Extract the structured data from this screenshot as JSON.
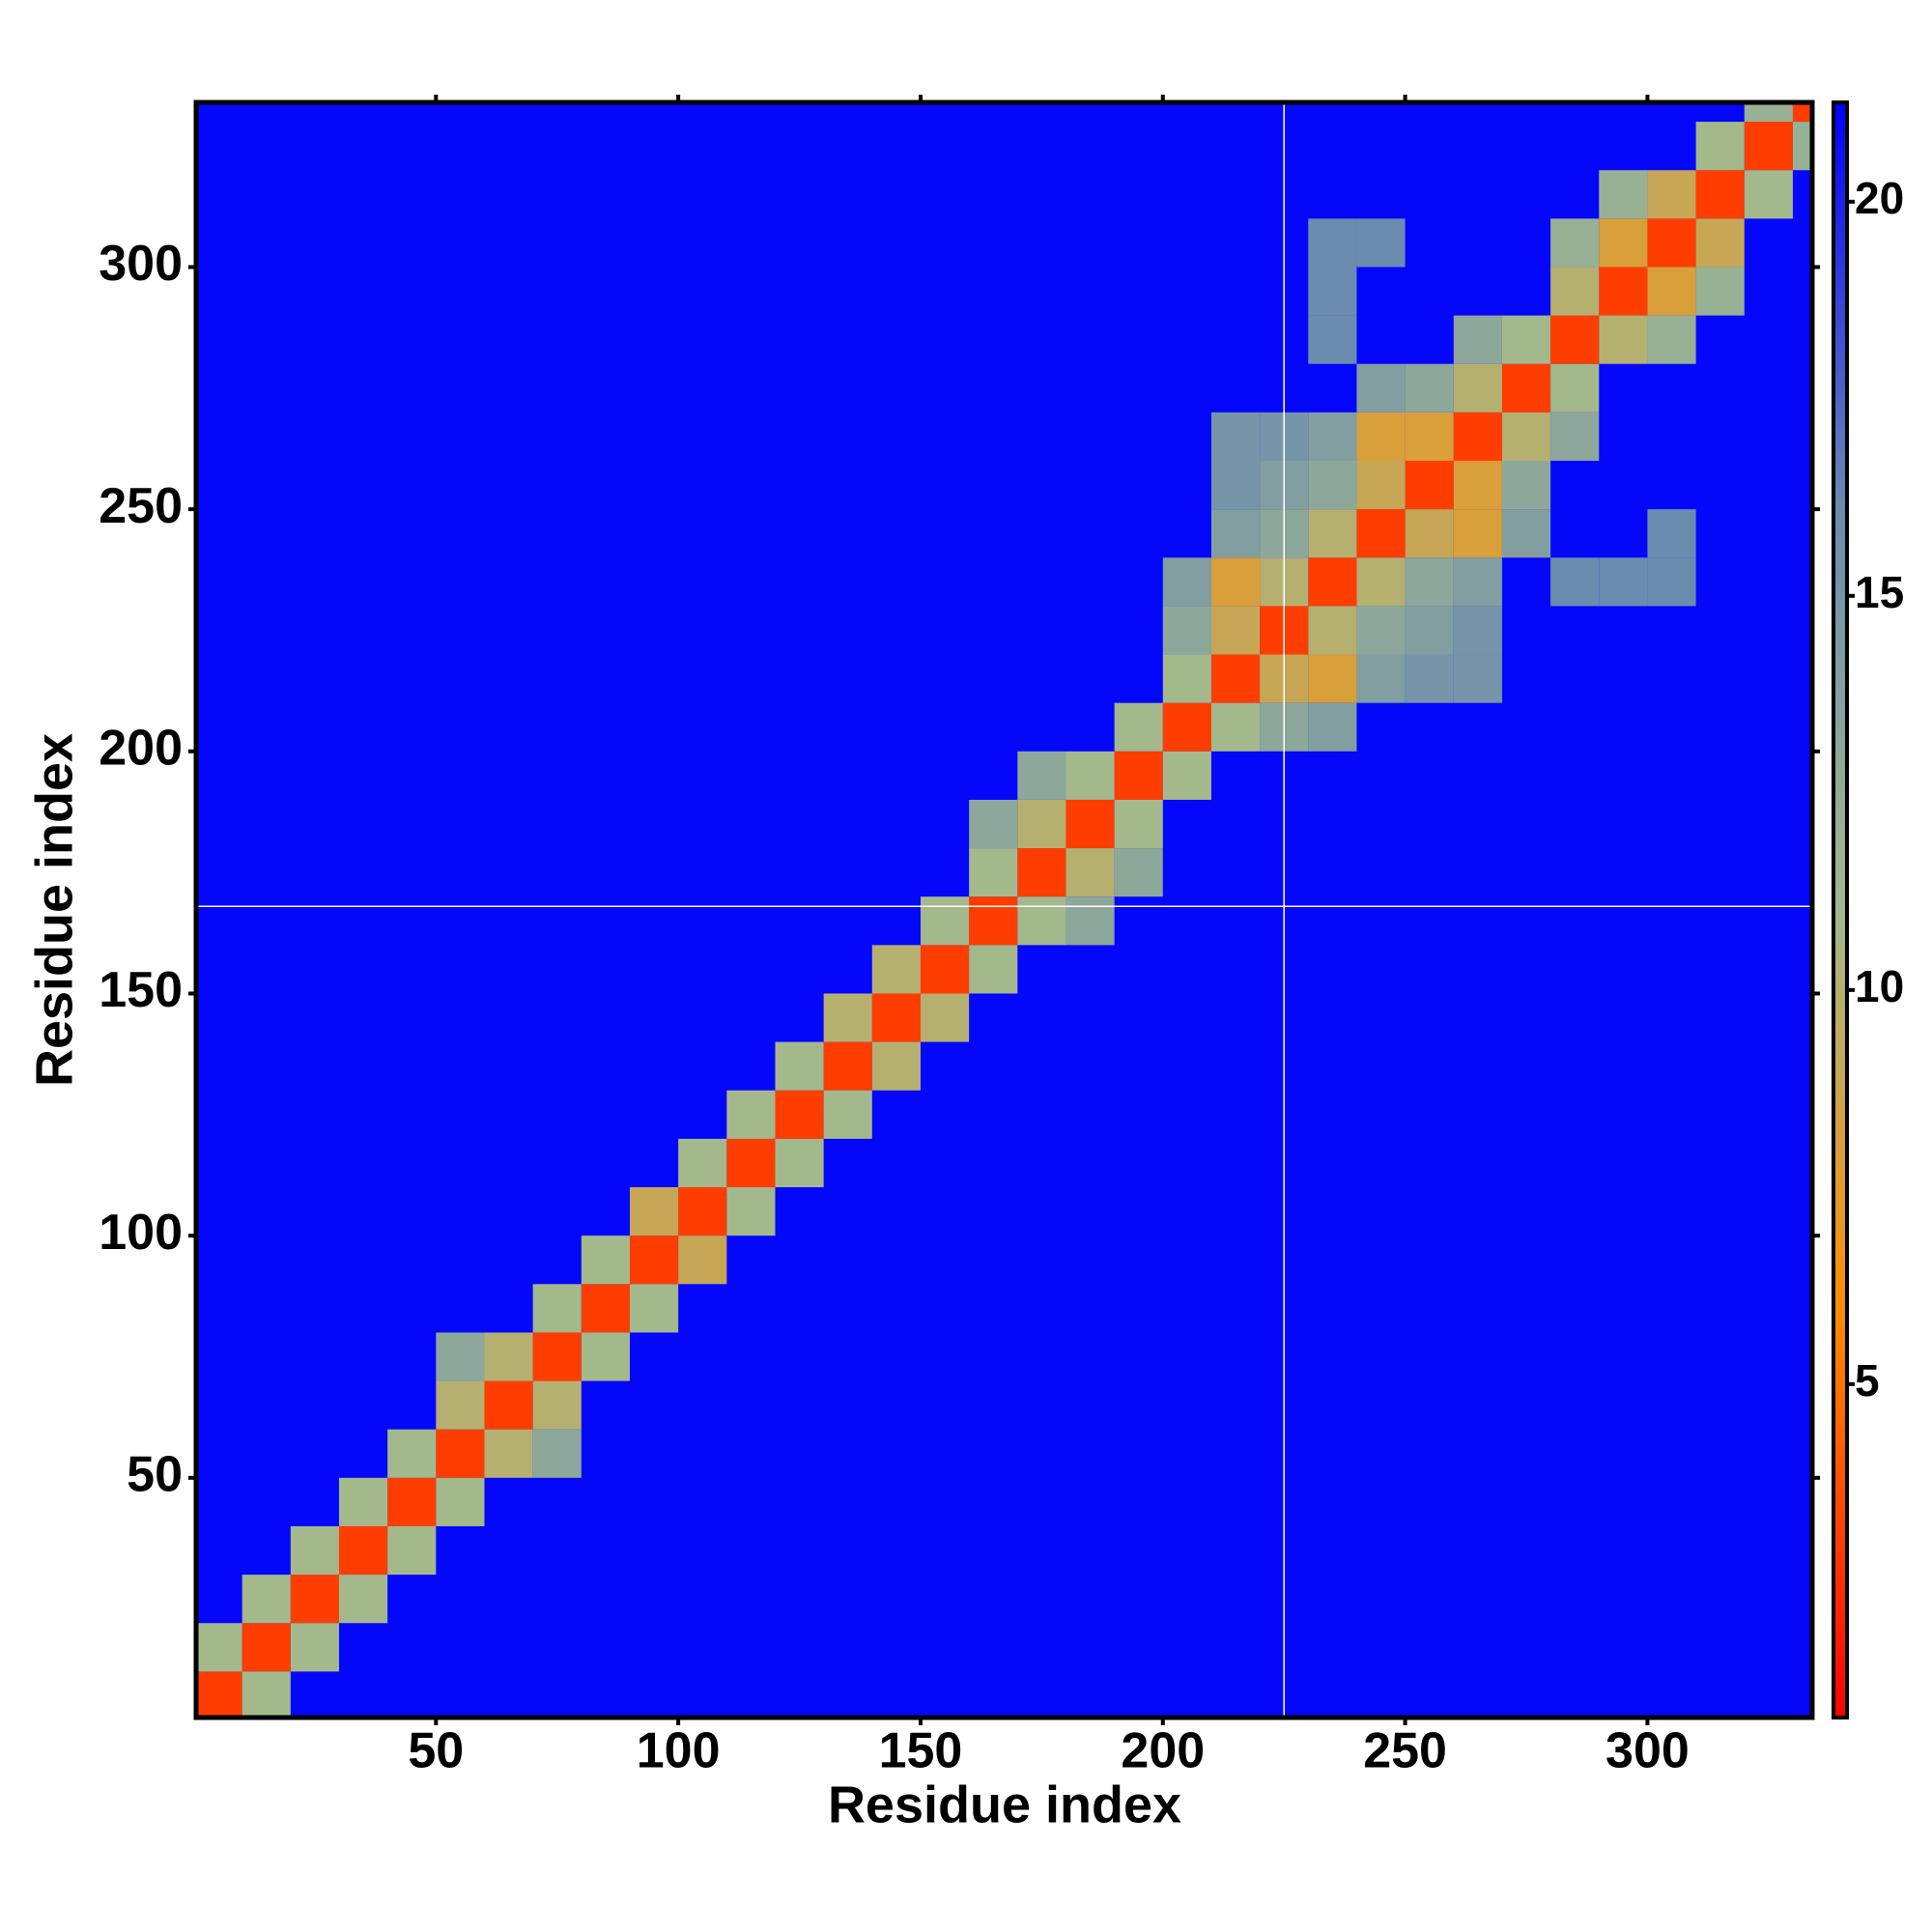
{
  "chart_data": {
    "type": "heatmap",
    "x_label": "Residue index",
    "y_label": "Residue index",
    "xlim": [
      0.5,
      334
    ],
    "ylim": [
      0.5,
      334
    ],
    "xticks": [
      50,
      100,
      150,
      200,
      250,
      300
    ],
    "yticks": [
      50,
      100,
      150,
      200,
      250,
      300
    ],
    "clim": [
      0.77,
      21.26
    ],
    "colorbar_ticks": [
      5,
      10,
      15,
      20
    ],
    "colors": [
      "#ff0000",
      "#ff8c00",
      "#a3b98c",
      "#6a8bb0",
      "#0000ff"
    ],
    "fill_value": 21,
    "bin_width": 10,
    "vlines": [
      225
    ],
    "hlines": [
      168
    ],
    "cells": [
      [
        0,
        0,
        3
      ],
      [
        10,
        10,
        3
      ],
      [
        20,
        20,
        3
      ],
      [
        30,
        30,
        3
      ],
      [
        40,
        40,
        3
      ],
      [
        50,
        50,
        3
      ],
      [
        60,
        60,
        3
      ],
      [
        70,
        70,
        3
      ],
      [
        80,
        80,
        3
      ],
      [
        90,
        90,
        3
      ],
      [
        100,
        100,
        3
      ],
      [
        110,
        110,
        3
      ],
      [
        120,
        120,
        3
      ],
      [
        130,
        130,
        3
      ],
      [
        140,
        140,
        3
      ],
      [
        150,
        150,
        3
      ],
      [
        160,
        160,
        3
      ],
      [
        170,
        170,
        3
      ],
      [
        180,
        180,
        3
      ],
      [
        190,
        190,
        3
      ],
      [
        200,
        200,
        3
      ],
      [
        210,
        210,
        3
      ],
      [
        220,
        220,
        3
      ],
      [
        230,
        230,
        3
      ],
      [
        240,
        240,
        3
      ],
      [
        250,
        250,
        3
      ],
      [
        260,
        260,
        3
      ],
      [
        270,
        270,
        3
      ],
      [
        280,
        280,
        3
      ],
      [
        290,
        290,
        3
      ],
      [
        300,
        300,
        3
      ],
      [
        310,
        310,
        3
      ],
      [
        320,
        320,
        3
      ],
      [
        330,
        330,
        3
      ],
      [
        0,
        10,
        11
      ],
      [
        10,
        0,
        11
      ],
      [
        10,
        20,
        11
      ],
      [
        20,
        10,
        11
      ],
      [
        20,
        30,
        11
      ],
      [
        30,
        20,
        11
      ],
      [
        30,
        40,
        11
      ],
      [
        40,
        30,
        11
      ],
      [
        40,
        50,
        11
      ],
      [
        50,
        40,
        11
      ],
      [
        50,
        60,
        10
      ],
      [
        60,
        50,
        10
      ],
      [
        60,
        70,
        10
      ],
      [
        70,
        60,
        10
      ],
      [
        70,
        80,
        11
      ],
      [
        80,
        70,
        11
      ],
      [
        80,
        90,
        11
      ],
      [
        90,
        80,
        11
      ],
      [
        90,
        100,
        9
      ],
      [
        100,
        90,
        9
      ],
      [
        100,
        110,
        11
      ],
      [
        110,
        100,
        11
      ],
      [
        110,
        120,
        11
      ],
      [
        120,
        110,
        11
      ],
      [
        120,
        130,
        11
      ],
      [
        130,
        120,
        11
      ],
      [
        130,
        140,
        10
      ],
      [
        140,
        130,
        10
      ],
      [
        140,
        150,
        10
      ],
      [
        150,
        140,
        10
      ],
      [
        150,
        160,
        11
      ],
      [
        160,
        150,
        11
      ],
      [
        160,
        170,
        11
      ],
      [
        170,
        160,
        11
      ],
      [
        170,
        180,
        10
      ],
      [
        180,
        170,
        10
      ],
      [
        180,
        190,
        11
      ],
      [
        190,
        180,
        11
      ],
      [
        190,
        200,
        11
      ],
      [
        200,
        190,
        11
      ],
      [
        200,
        210,
        11
      ],
      [
        210,
        200,
        11
      ],
      [
        210,
        220,
        9
      ],
      [
        220,
        210,
        9
      ],
      [
        220,
        230,
        10
      ],
      [
        230,
        220,
        10
      ],
      [
        230,
        240,
        10
      ],
      [
        240,
        230,
        10
      ],
      [
        240,
        250,
        9
      ],
      [
        250,
        240,
        9
      ],
      [
        250,
        260,
        8
      ],
      [
        260,
        250,
        8
      ],
      [
        260,
        270,
        10
      ],
      [
        270,
        260,
        10
      ],
      [
        270,
        280,
        11
      ],
      [
        280,
        270,
        11
      ],
      [
        280,
        290,
        10
      ],
      [
        290,
        280,
        10
      ],
      [
        290,
        300,
        8
      ],
      [
        300,
        290,
        8
      ],
      [
        300,
        310,
        9
      ],
      [
        310,
        300,
        9
      ],
      [
        310,
        320,
        11
      ],
      [
        320,
        310,
        11
      ],
      [
        320,
        330,
        12
      ],
      [
        330,
        320,
        12
      ],
      [
        50,
        70,
        13
      ],
      [
        70,
        50,
        13
      ],
      [
        160,
        180,
        13
      ],
      [
        180,
        160,
        13
      ],
      [
        170,
        190,
        13
      ],
      [
        190,
        170,
        13
      ],
      [
        200,
        220,
        13
      ],
      [
        220,
        200,
        13
      ],
      [
        210,
        230,
        8
      ],
      [
        230,
        210,
        8
      ],
      [
        220,
        240,
        13
      ],
      [
        240,
        220,
        13
      ],
      [
        230,
        250,
        13
      ],
      [
        250,
        230,
        13
      ],
      [
        240,
        260,
        8
      ],
      [
        260,
        240,
        8
      ],
      [
        250,
        270,
        13
      ],
      [
        270,
        250,
        13
      ],
      [
        260,
        280,
        13
      ],
      [
        280,
        260,
        13
      ],
      [
        200,
        230,
        14
      ],
      [
        230,
        200,
        14
      ],
      [
        210,
        240,
        14
      ],
      [
        240,
        210,
        14
      ],
      [
        220,
        250,
        14
      ],
      [
        250,
        220,
        14
      ],
      [
        230,
        260,
        14
      ],
      [
        260,
        230,
        14
      ],
      [
        240,
        270,
        14
      ],
      [
        270,
        240,
        14
      ],
      [
        210,
        250,
        15
      ],
      [
        250,
        210,
        15
      ],
      [
        220,
        260,
        15
      ],
      [
        260,
        220,
        15
      ],
      [
        210,
        260,
        15
      ],
      [
        260,
        210,
        15
      ],
      [
        230,
        290,
        16
      ],
      [
        290,
        230,
        16
      ],
      [
        240,
        300,
        16
      ],
      [
        300,
        240,
        16
      ],
      [
        230,
        300,
        16
      ],
      [
        300,
        230,
        16
      ],
      [
        280,
        230,
        16
      ],
      [
        230,
        280,
        16
      ],
      [
        280,
        300,
        12
      ],
      [
        300,
        280,
        12
      ],
      [
        290,
        310,
        12
      ],
      [
        310,
        290,
        12
      ]
    ]
  }
}
